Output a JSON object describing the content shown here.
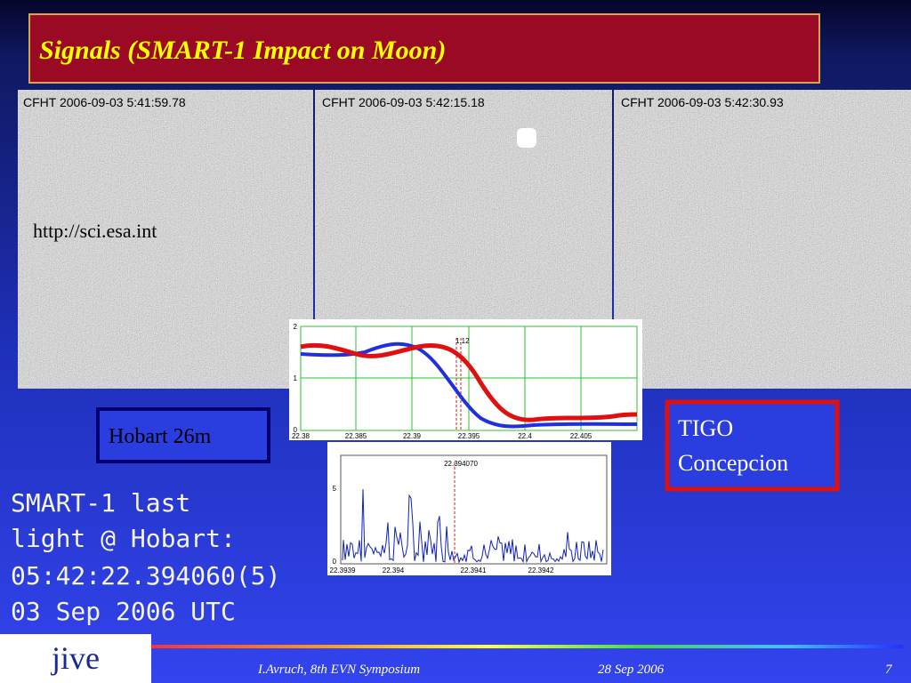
{
  "title": "Signals (SMART-1 Impact on Moon)",
  "images": [
    {
      "caption": "CFHT 2006-09-03 5:41:59.78"
    },
    {
      "caption": "CFHT 2006-09-03 5:42:15.18"
    },
    {
      "caption": "CFHT 2006-09-03 5:42:30.93"
    }
  ],
  "image_credit": "http://sci.esa.int",
  "plot_top": {
    "yticks": [
      "2",
      "1",
      "0"
    ],
    "xticks": [
      "22.38",
      "22.385",
      "22.39",
      "22.395",
      "22.4",
      "22.405"
    ],
    "marker": "1.12"
  },
  "plot_bottom": {
    "yticks": [
      "5",
      "0"
    ],
    "xticks": [
      "22.3939",
      "22.394",
      "22.3941",
      "22.3942"
    ],
    "marker": "22.394070"
  },
  "labels": {
    "hobart": "Hobart 26m",
    "tigo": [
      "TIGO",
      "Concepcion"
    ]
  },
  "note": [
    "SMART-1 last",
    "light @ Hobart:",
    "05:42:22.394060(5)",
    "03 Sep 2006 UTC"
  ],
  "footer": {
    "logo": "jive",
    "author": "I.Avruch, 8th EVN Symposium",
    "date": "28 Sep 2006",
    "page": "7"
  }
}
